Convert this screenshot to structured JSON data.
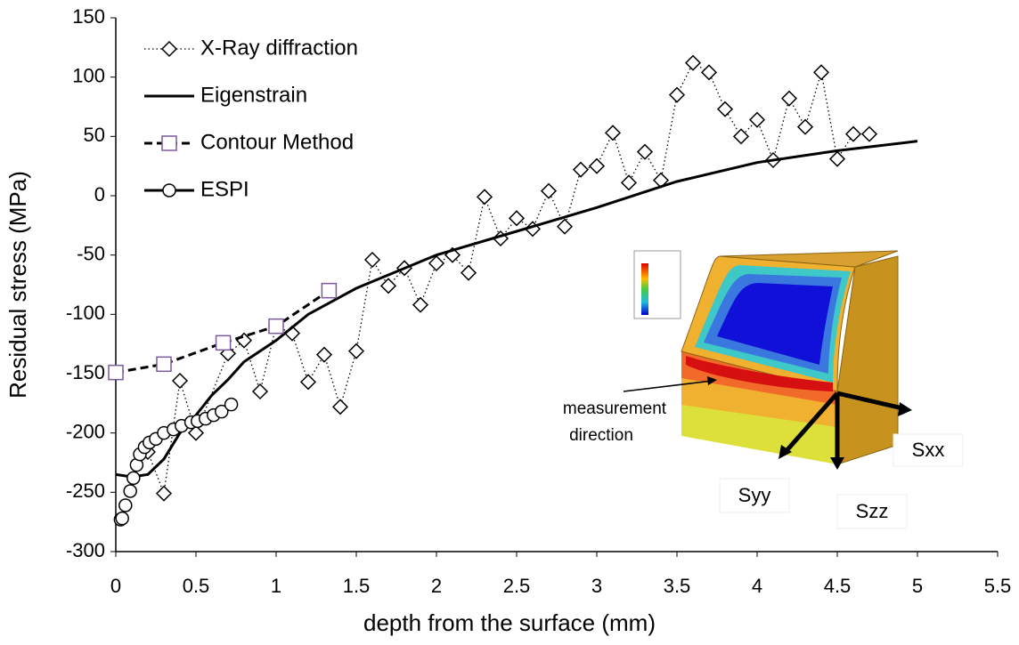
{
  "chart_data": {
    "type": "line",
    "x_label": "depth from the surface (mm)",
    "y_label": "Residual stress (MPa)",
    "xlim": [
      0,
      5.5
    ],
    "xticks": [
      0,
      0.5,
      1,
      1.5,
      2,
      2.5,
      3,
      3.5,
      4,
      4.5,
      5,
      5.5
    ],
    "ylim": [
      -300,
      150
    ],
    "yticks": [
      -300,
      -250,
      -200,
      -150,
      -100,
      -50,
      0,
      50,
      100,
      150
    ],
    "legend": "upper left",
    "series": [
      {
        "name": "X-Ray diffraction",
        "color": "#000000",
        "line_style": "dotted",
        "marker": "diamond",
        "x": [
          0.2,
          0.3,
          0.4,
          0.5,
          0.7,
          0.8,
          0.9,
          1.0,
          1.1,
          1.2,
          1.3,
          1.4,
          1.5,
          1.6,
          1.7,
          1.8,
          1.9,
          2.0,
          2.1,
          2.2,
          2.3,
          2.4,
          2.5,
          2.6,
          2.7,
          2.8,
          2.9,
          3.0,
          3.1,
          3.2,
          3.3,
          3.4,
          3.5,
          3.6,
          3.7,
          3.8,
          3.9,
          4.0,
          4.1,
          4.2,
          4.3,
          4.4,
          4.5,
          4.6,
          4.7
        ],
        "values": [
          -216,
          -251,
          -156,
          -200,
          -133,
          -122,
          -165,
          -110,
          -116,
          -157,
          -134,
          -178,
          -131,
          -54,
          -76,
          -61,
          -92,
          -57,
          -50,
          -65,
          -1,
          -36,
          -19,
          -28,
          4,
          -26,
          22,
          25,
          53,
          11,
          37,
          13,
          85,
          112,
          104,
          73,
          50,
          64,
          30,
          82,
          58,
          104,
          31,
          52,
          52
        ]
      },
      {
        "name": "Eigenstrain",
        "color": "#000000",
        "line_style": "solid",
        "marker": "none",
        "x": [
          0,
          0.1,
          0.2,
          0.3,
          0.4,
          0.5,
          0.6,
          0.7,
          0.8,
          1.0,
          1.2,
          1.5,
          2.0,
          2.5,
          3.0,
          3.5,
          4.0,
          4.5,
          5.0
        ],
        "values": [
          -235,
          -237,
          -235,
          -222,
          -200,
          -185,
          -168,
          -155,
          -140,
          -122,
          -100,
          -78,
          -50,
          -30,
          -10,
          12,
          28,
          38,
          46
        ]
      },
      {
        "name": "Contour Method",
        "color": "#000000",
        "line_style": "dashed",
        "marker": "square",
        "x": [
          0,
          0.3,
          0.67,
          1.0,
          1.33
        ],
        "values": [
          -149,
          -142,
          -124,
          -110,
          -80
        ]
      },
      {
        "name": "ESPI",
        "color": "#000000",
        "line_style": "none",
        "marker": "circle",
        "x": [
          0.03,
          0.04,
          0.06,
          0.09,
          0.11,
          0.13,
          0.15,
          0.18,
          0.21,
          0.25,
          0.3,
          0.36,
          0.41,
          0.47,
          0.51,
          0.56,
          0.61,
          0.66,
          0.72
        ],
        "values": [
          -273,
          -272,
          -261,
          -249,
          -238,
          -227,
          -218,
          -212,
          -208,
          -205,
          -200,
          -197,
          -194,
          -191,
          -190,
          -188,
          -185,
          -182,
          -176
        ]
      }
    ],
    "annotations": {
      "measurement": [
        "measurement",
        "direction"
      ],
      "syy": "Syy",
      "szz": "Szz",
      "sxx": "Sxx"
    }
  }
}
